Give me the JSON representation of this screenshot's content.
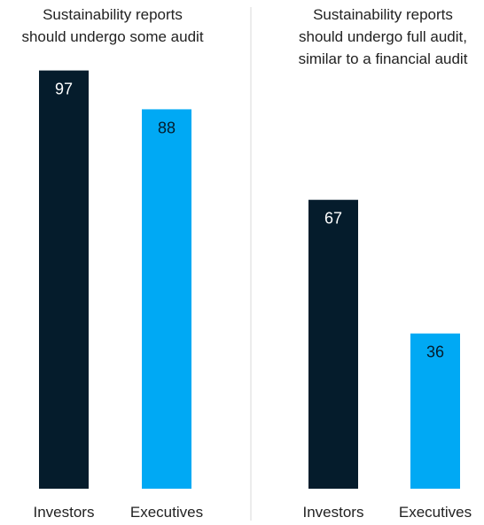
{
  "chart_data": [
    {
      "type": "bar",
      "title": "Sustainability reports should undergo some audit",
      "title_lines": [
        "Sustainability reports",
        "should undergo some audit"
      ],
      "categories": [
        "Investors",
        "Executives"
      ],
      "values": [
        97,
        88
      ],
      "colors": [
        "#051c2c",
        "#00a9f4"
      ],
      "ylim": [
        0,
        100
      ]
    },
    {
      "type": "bar",
      "title": "Sustainability reports should undergo full audit, similar to a financial audit",
      "title_lines": [
        "Sustainability reports",
        "should undergo full audit,",
        "similar to a financial audit"
      ],
      "categories": [
        "Investors",
        "Executives"
      ],
      "values": [
        67,
        36
      ],
      "colors": [
        "#051c2c",
        "#00a9f4"
      ],
      "ylim": [
        0,
        100
      ]
    }
  ],
  "colors": {
    "divider": "#d9d9d9",
    "label_on_dark": "#ffffff",
    "label_on_light": "#051c2c",
    "text": "#222222"
  }
}
